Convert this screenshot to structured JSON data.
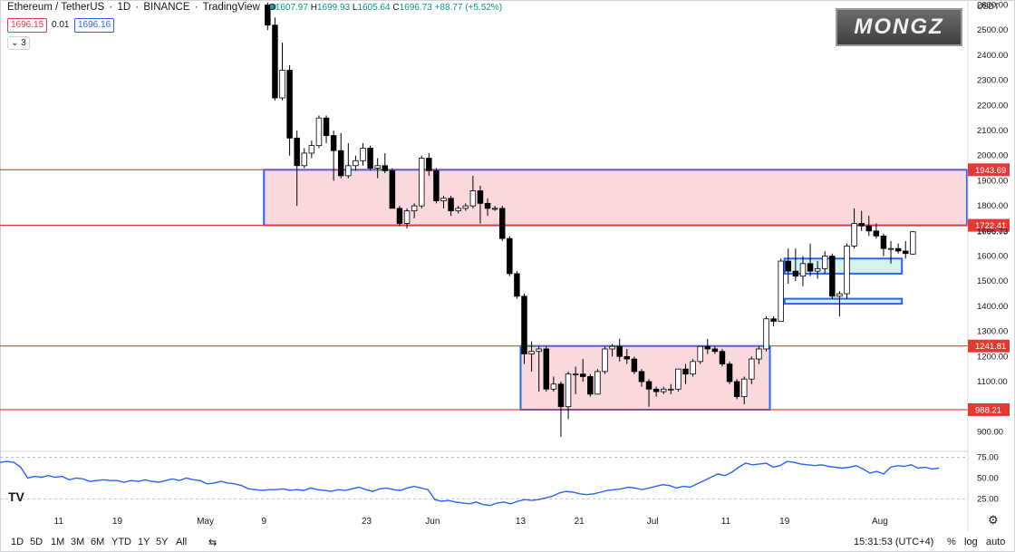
{
  "header": {
    "symbol": "Ethereum / TetherUS",
    "interval": "1D",
    "exchange": "BINANCE",
    "platform": "TradingView",
    "open_label": "O",
    "open": "1607.97",
    "high_label": "H",
    "high": "1699.93",
    "low_label": "L",
    "low": "1605.64",
    "close_label": "C",
    "close": "1696.73",
    "change": "+88.77 (+5.52%)",
    "sell_price": "1696.15",
    "spread": "0.01",
    "buy_price": "1696.16",
    "indicator_count": "3",
    "status_color": "#26a69a"
  },
  "logo_text": "MONGZ",
  "tv_logo_text": "TV",
  "chart_data": {
    "type": "candlestick",
    "currency_label": "USDT",
    "y_range": [
      840,
      2620
    ],
    "y_ticks": [
      900,
      1000,
      1100,
      1200,
      1300,
      1400,
      1500,
      1600,
      1700,
      1800,
      1900,
      2000,
      2100,
      2200,
      2300,
      2400,
      2500,
      2600
    ],
    "y_tick_labels": [
      "900.00",
      "1000.00",
      "1100.00",
      "1200.00",
      "1300.00",
      "1400.00",
      "1500.00",
      "1600.00",
      "1700.00",
      "1800.00",
      "1900.00",
      "2000.00",
      "2100.00",
      "2200.00",
      "2300.00",
      "2400.00",
      "2500.00",
      "2600.00"
    ],
    "x_range": [
      "2022-04-03",
      "2022-08-13"
    ],
    "x_ticks": [
      {
        "date": "2022-04-11",
        "label": "11"
      },
      {
        "date": "2022-04-19",
        "label": "19"
      },
      {
        "date": "2022-05-01",
        "label": "May"
      },
      {
        "date": "2022-05-09",
        "label": "9"
      },
      {
        "date": "2022-05-23",
        "label": "23"
      },
      {
        "date": "2022-06-01",
        "label": "Jun"
      },
      {
        "date": "2022-06-13",
        "label": "13"
      },
      {
        "date": "2022-06-21",
        "label": "21"
      },
      {
        "date": "2022-07-01",
        "label": "Jul"
      },
      {
        "date": "2022-07-11",
        "label": "11"
      },
      {
        "date": "2022-07-19",
        "label": "19"
      },
      {
        "date": "2022-08-01",
        "label": "Aug"
      }
    ],
    "up_color": "#ffffff",
    "down_color": "#000000",
    "candles": [
      {
        "date": "2022-05-09",
        "o": 2600,
        "h": 2610,
        "l": 2500,
        "c": 2520
      },
      {
        "date": "2022-05-10",
        "o": 2520,
        "h": 2550,
        "l": 2220,
        "c": 2230
      },
      {
        "date": "2022-05-11",
        "o": 2230,
        "h": 2450,
        "l": 2220,
        "c": 2340
      },
      {
        "date": "2022-05-12",
        "o": 2340,
        "h": 2360,
        "l": 2000,
        "c": 2070
      },
      {
        "date": "2022-05-13",
        "o": 2070,
        "h": 2100,
        "l": 1800,
        "c": 1960
      },
      {
        "date": "2022-05-14",
        "o": 1960,
        "h": 2030,
        "l": 1950,
        "c": 2010
      },
      {
        "date": "2022-05-15",
        "o": 2010,
        "h": 2060,
        "l": 1990,
        "c": 2040
      },
      {
        "date": "2022-05-16",
        "o": 2040,
        "h": 2160,
        "l": 2030,
        "c": 2150
      },
      {
        "date": "2022-05-17",
        "o": 2150,
        "h": 2160,
        "l": 2050,
        "c": 2080
      },
      {
        "date": "2022-05-18",
        "o": 2080,
        "h": 2100,
        "l": 1900,
        "c": 2020
      },
      {
        "date": "2022-05-19",
        "o": 2020,
        "h": 2090,
        "l": 1910,
        "c": 1920
      },
      {
        "date": "2022-05-20",
        "o": 1920,
        "h": 2050,
        "l": 1910,
        "c": 1960
      },
      {
        "date": "2022-05-21",
        "o": 1960,
        "h": 2000,
        "l": 1940,
        "c": 1980
      },
      {
        "date": "2022-05-22",
        "o": 1980,
        "h": 2050,
        "l": 1960,
        "c": 2030
      },
      {
        "date": "2022-05-23",
        "o": 2030,
        "h": 2040,
        "l": 1940,
        "c": 1950
      },
      {
        "date": "2022-05-24",
        "o": 1950,
        "h": 1990,
        "l": 1910,
        "c": 1960
      },
      {
        "date": "2022-05-25",
        "o": 1960,
        "h": 2010,
        "l": 1930,
        "c": 1940
      },
      {
        "date": "2022-05-26",
        "o": 1940,
        "h": 1950,
        "l": 1800,
        "c": 1790
      },
      {
        "date": "2022-05-27",
        "o": 1790,
        "h": 1800,
        "l": 1720,
        "c": 1730
      },
      {
        "date": "2022-05-28",
        "o": 1730,
        "h": 1790,
        "l": 1710,
        "c": 1780
      },
      {
        "date": "2022-05-29",
        "o": 1780,
        "h": 1810,
        "l": 1750,
        "c": 1800
      },
      {
        "date": "2022-05-30",
        "o": 1800,
        "h": 2000,
        "l": 1790,
        "c": 1990
      },
      {
        "date": "2022-05-31",
        "o": 1990,
        "h": 2010,
        "l": 1920,
        "c": 1940
      },
      {
        "date": "2022-06-01",
        "o": 1940,
        "h": 1950,
        "l": 1810,
        "c": 1820
      },
      {
        "date": "2022-06-02",
        "o": 1820,
        "h": 1840,
        "l": 1790,
        "c": 1830
      },
      {
        "date": "2022-06-03",
        "o": 1830,
        "h": 1840,
        "l": 1760,
        "c": 1780
      },
      {
        "date": "2022-06-04",
        "o": 1780,
        "h": 1800,
        "l": 1770,
        "c": 1790
      },
      {
        "date": "2022-06-05",
        "o": 1790,
        "h": 1810,
        "l": 1780,
        "c": 1800
      },
      {
        "date": "2022-06-06",
        "o": 1800,
        "h": 1920,
        "l": 1790,
        "c": 1860
      },
      {
        "date": "2022-06-07",
        "o": 1860,
        "h": 1880,
        "l": 1730,
        "c": 1810
      },
      {
        "date": "2022-06-08",
        "o": 1810,
        "h": 1830,
        "l": 1760,
        "c": 1790
      },
      {
        "date": "2022-06-09",
        "o": 1790,
        "h": 1800,
        "l": 1780,
        "c": 1790
      },
      {
        "date": "2022-06-10",
        "o": 1790,
        "h": 1800,
        "l": 1660,
        "c": 1670
      },
      {
        "date": "2022-06-11",
        "o": 1670,
        "h": 1680,
        "l": 1520,
        "c": 1530
      },
      {
        "date": "2022-06-12",
        "o": 1530,
        "h": 1540,
        "l": 1430,
        "c": 1440
      },
      {
        "date": "2022-06-13",
        "o": 1440,
        "h": 1450,
        "l": 1170,
        "c": 1210
      },
      {
        "date": "2022-06-14",
        "o": 1210,
        "h": 1260,
        "l": 1140,
        "c": 1220
      },
      {
        "date": "2022-06-15",
        "o": 1220,
        "h": 1240,
        "l": 1060,
        "c": 1230
      },
      {
        "date": "2022-06-16",
        "o": 1230,
        "h": 1240,
        "l": 1060,
        "c": 1070
      },
      {
        "date": "2022-06-17",
        "o": 1070,
        "h": 1120,
        "l": 1060,
        "c": 1090
      },
      {
        "date": "2022-06-18",
        "o": 1090,
        "h": 1100,
        "l": 880,
        "c": 1000
      },
      {
        "date": "2022-06-19",
        "o": 1000,
        "h": 1140,
        "l": 950,
        "c": 1130
      },
      {
        "date": "2022-06-20",
        "o": 1130,
        "h": 1160,
        "l": 1050,
        "c": 1130
      },
      {
        "date": "2022-06-21",
        "o": 1130,
        "h": 1190,
        "l": 1100,
        "c": 1120
      },
      {
        "date": "2022-06-22",
        "o": 1120,
        "h": 1130,
        "l": 1040,
        "c": 1050
      },
      {
        "date": "2022-06-23",
        "o": 1050,
        "h": 1150,
        "l": 1050,
        "c": 1140
      },
      {
        "date": "2022-06-24",
        "o": 1140,
        "h": 1240,
        "l": 1130,
        "c": 1230
      },
      {
        "date": "2022-06-25",
        "o": 1230,
        "h": 1250,
        "l": 1200,
        "c": 1240
      },
      {
        "date": "2022-06-26",
        "o": 1240,
        "h": 1270,
        "l": 1180,
        "c": 1200
      },
      {
        "date": "2022-06-27",
        "o": 1200,
        "h": 1230,
        "l": 1170,
        "c": 1190
      },
      {
        "date": "2022-06-28",
        "o": 1190,
        "h": 1200,
        "l": 1130,
        "c": 1140
      },
      {
        "date": "2022-06-29",
        "o": 1140,
        "h": 1150,
        "l": 1080,
        "c": 1100
      },
      {
        "date": "2022-06-30",
        "o": 1100,
        "h": 1110,
        "l": 1000,
        "c": 1070
      },
      {
        "date": "2022-07-01",
        "o": 1070,
        "h": 1080,
        "l": 1040,
        "c": 1060
      },
      {
        "date": "2022-07-02",
        "o": 1060,
        "h": 1080,
        "l": 1050,
        "c": 1070
      },
      {
        "date": "2022-07-03",
        "o": 1070,
        "h": 1090,
        "l": 1050,
        "c": 1070
      },
      {
        "date": "2022-07-04",
        "o": 1070,
        "h": 1150,
        "l": 1060,
        "c": 1150
      },
      {
        "date": "2022-07-05",
        "o": 1150,
        "h": 1170,
        "l": 1090,
        "c": 1130
      },
      {
        "date": "2022-07-06",
        "o": 1130,
        "h": 1190,
        "l": 1120,
        "c": 1180
      },
      {
        "date": "2022-07-07",
        "o": 1180,
        "h": 1240,
        "l": 1170,
        "c": 1240
      },
      {
        "date": "2022-07-08",
        "o": 1240,
        "h": 1270,
        "l": 1210,
        "c": 1230
      },
      {
        "date": "2022-07-09",
        "o": 1230,
        "h": 1240,
        "l": 1210,
        "c": 1220
      },
      {
        "date": "2022-07-10",
        "o": 1220,
        "h": 1230,
        "l": 1160,
        "c": 1170
      },
      {
        "date": "2022-07-11",
        "o": 1170,
        "h": 1180,
        "l": 1090,
        "c": 1100
      },
      {
        "date": "2022-07-12",
        "o": 1100,
        "h": 1110,
        "l": 1030,
        "c": 1040
      },
      {
        "date": "2022-07-13",
        "o": 1040,
        "h": 1120,
        "l": 1010,
        "c": 1110
      },
      {
        "date": "2022-07-14",
        "o": 1110,
        "h": 1200,
        "l": 1090,
        "c": 1190
      },
      {
        "date": "2022-07-15",
        "o": 1190,
        "h": 1240,
        "l": 1170,
        "c": 1230
      },
      {
        "date": "2022-07-16",
        "o": 1230,
        "h": 1360,
        "l": 1220,
        "c": 1350
      },
      {
        "date": "2022-07-17",
        "o": 1350,
        "h": 1360,
        "l": 1320,
        "c": 1340
      },
      {
        "date": "2022-07-18",
        "o": 1340,
        "h": 1590,
        "l": 1340,
        "c": 1580
      },
      {
        "date": "2022-07-19",
        "o": 1580,
        "h": 1630,
        "l": 1490,
        "c": 1540
      },
      {
        "date": "2022-07-20",
        "o": 1540,
        "h": 1630,
        "l": 1500,
        "c": 1520
      },
      {
        "date": "2022-07-21",
        "o": 1520,
        "h": 1600,
        "l": 1480,
        "c": 1570
      },
      {
        "date": "2022-07-22",
        "o": 1570,
        "h": 1650,
        "l": 1520,
        "c": 1540
      },
      {
        "date": "2022-07-23",
        "o": 1540,
        "h": 1580,
        "l": 1510,
        "c": 1550
      },
      {
        "date": "2022-07-24",
        "o": 1550,
        "h": 1620,
        "l": 1530,
        "c": 1600
      },
      {
        "date": "2022-07-25",
        "o": 1600,
        "h": 1610,
        "l": 1430,
        "c": 1440
      },
      {
        "date": "2022-07-26",
        "o": 1440,
        "h": 1460,
        "l": 1360,
        "c": 1450
      },
      {
        "date": "2022-07-27",
        "o": 1450,
        "h": 1650,
        "l": 1430,
        "c": 1640
      },
      {
        "date": "2022-07-28",
        "o": 1640,
        "h": 1790,
        "l": 1630,
        "c": 1730
      },
      {
        "date": "2022-07-29",
        "o": 1730,
        "h": 1780,
        "l": 1700,
        "c": 1720
      },
      {
        "date": "2022-07-30",
        "o": 1720,
        "h": 1760,
        "l": 1680,
        "c": 1700
      },
      {
        "date": "2022-07-31",
        "o": 1700,
        "h": 1730,
        "l": 1670,
        "c": 1680
      },
      {
        "date": "2022-08-01",
        "o": 1680,
        "h": 1690,
        "l": 1600,
        "c": 1630
      },
      {
        "date": "2022-08-02",
        "o": 1630,
        "h": 1660,
        "l": 1570,
        "c": 1630
      },
      {
        "date": "2022-08-03",
        "o": 1630,
        "h": 1650,
        "l": 1610,
        "c": 1620
      },
      {
        "date": "2022-08-04",
        "o": 1620,
        "h": 1660,
        "l": 1590,
        "c": 1610
      },
      {
        "date": "2022-08-05",
        "o": 1607.97,
        "h": 1699.93,
        "l": 1605.64,
        "c": 1696.73
      }
    ],
    "hlines": [
      {
        "price": 1943.69,
        "label": "1943.69",
        "color": "#e53935"
      },
      {
        "price": 1722.41,
        "label": "1722.41",
        "color": "#e53935"
      },
      {
        "price": 1241.81,
        "label": "1241.81",
        "color": "#e53935"
      },
      {
        "price": 988.21,
        "label": "988.21",
        "color": "#e53935"
      }
    ],
    "current_price": {
      "price": 1696.73,
      "label": "1696.73"
    },
    "zones": [
      {
        "x0": "2022-05-09",
        "x1": "2022-08-13",
        "y0": 1722.41,
        "y1": 1943.69,
        "fill": "#f9d9dc",
        "stroke": "#2962ff"
      },
      {
        "x0": "2022-06-13",
        "x1": "2022-07-17",
        "y0": 988.21,
        "y1": 1241.81,
        "fill": "#f9d9dc",
        "stroke": "#2962ff"
      },
      {
        "x0": "2022-07-19",
        "x1": "2022-08-04",
        "y0": 1530,
        "y1": 1590,
        "fill": "#d7f2ee",
        "stroke": "#2962ff"
      },
      {
        "x0": "2022-07-19",
        "x1": "2022-08-04",
        "y0": 1410,
        "y1": 1430,
        "fill": "#d7f2ee",
        "stroke": "#2962ff"
      }
    ],
    "rsi": {
      "range": [
        10,
        80
      ],
      "ticks": [
        25,
        50,
        75
      ],
      "tick_labels": [
        "25.00",
        "50.00",
        "75.00"
      ],
      "color": "#2962ff",
      "values": [
        69,
        70,
        69,
        63,
        50,
        52,
        51,
        53,
        51,
        52,
        48,
        50,
        49,
        46,
        47,
        48,
        47,
        47,
        45,
        47,
        46,
        48,
        46,
        45,
        47,
        49,
        47,
        50,
        48,
        47,
        43,
        44,
        46,
        44,
        43,
        41,
        37,
        36,
        35,
        36,
        36,
        37,
        35,
        36,
        35,
        38,
        36,
        35,
        34,
        36,
        35,
        37,
        39,
        36,
        34,
        37,
        38,
        36,
        35,
        38,
        40,
        38,
        36,
        24,
        22,
        23,
        21,
        20,
        19,
        21,
        18,
        17,
        20,
        21,
        19,
        22,
        24,
        23,
        24,
        26,
        28,
        32,
        34,
        33,
        31,
        30,
        31,
        33,
        35,
        36,
        37,
        39,
        38,
        36,
        38,
        40,
        42,
        41,
        38,
        40,
        39,
        43,
        47,
        51,
        55,
        53,
        57,
        63,
        68,
        66,
        67,
        68,
        63,
        65,
        70,
        69,
        67,
        66,
        65,
        66,
        64,
        63,
        62,
        63,
        65,
        61,
        56,
        58,
        55,
        63,
        65,
        64,
        66,
        62,
        63,
        61,
        62
      ]
    }
  },
  "toolbar": {
    "ranges": [
      "1D",
      "5D",
      "1M",
      "3M",
      "6M",
      "YTD",
      "1Y",
      "5Y",
      "All"
    ],
    "time": "15:31:53 (UTC+4)",
    "percent_label": "%",
    "log_label": "log",
    "auto_label": "auto"
  }
}
